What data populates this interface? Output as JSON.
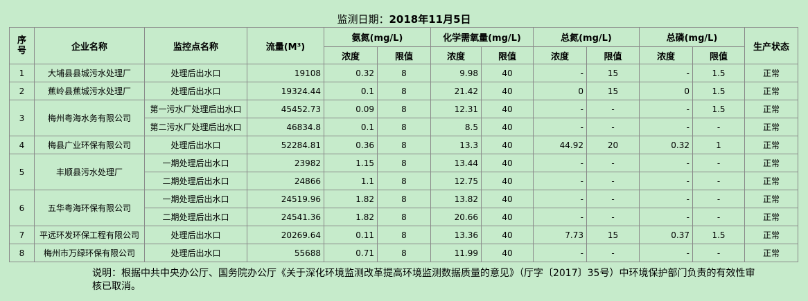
{
  "header": {
    "date_label": "监测日期：",
    "date_value": "2018年11月5日"
  },
  "columns": {
    "seq": "序号",
    "company": "企业名称",
    "point": "监控点名称",
    "flow": "流量(M³)",
    "ammonia": "氨氮(mg/L)",
    "cod": "化学需氧量(mg/L)",
    "tn": "总氮(mg/L)",
    "tp": "总磷(mg/L)",
    "status": "生产状态",
    "conc": "浓度",
    "limit": "限值"
  },
  "rows": [
    {
      "seq": "1",
      "company": "大埔县县城污水处理厂",
      "point": "处理后出水口",
      "flow": "19108",
      "nh3": "0.32",
      "nh3_lim": "8",
      "cod": "9.98",
      "cod_lim": "40",
      "tn": "-",
      "tn_lim": "15",
      "tp": "-",
      "tp_lim": "1.5",
      "status": "正常"
    },
    {
      "seq": "2",
      "company": "蕉岭县蕉城污水处理厂",
      "point": "处理后出水口",
      "flow": "19324.44",
      "nh3": "0.1",
      "nh3_lim": "8",
      "cod": "21.42",
      "cod_lim": "40",
      "tn": "0",
      "tn_lim": "15",
      "tp": "0",
      "tp_lim": "1.5",
      "status": "正常"
    },
    {
      "seq": "3",
      "company": "梅州粤海水务有限公司",
      "point": "第一污水厂处理后出水口",
      "flow": "45452.73",
      "nh3": "0.09",
      "nh3_lim": "8",
      "cod": "12.31",
      "cod_lim": "40",
      "tn": "-",
      "tn_lim": "-",
      "tp": "-",
      "tp_lim": "1.5",
      "status": "正常"
    },
    {
      "point": "第二污水厂处理后出水口",
      "flow": "46834.8",
      "nh3": "0.1",
      "nh3_lim": "8",
      "cod": "8.5",
      "cod_lim": "40",
      "tn": "-",
      "tn_lim": "-",
      "tp": "-",
      "tp_lim": "-",
      "status": "正常"
    },
    {
      "seq": "4",
      "company": "梅县广业环保有限公司",
      "point": "处理后出水口",
      "flow": "52284.81",
      "nh3": "0.36",
      "nh3_lim": "8",
      "cod": "13.3",
      "cod_lim": "40",
      "tn": "44.92",
      "tn_lim": "20",
      "tp": "0.32",
      "tp_lim": "1",
      "status": "正常"
    },
    {
      "seq": "5",
      "company": "丰顺县污水处理厂",
      "point": "一期处理后出水口",
      "flow": "23982",
      "nh3": "1.15",
      "nh3_lim": "8",
      "cod": "13.44",
      "cod_lim": "40",
      "tn": "-",
      "tn_lim": "-",
      "tp": "-",
      "tp_lim": "-",
      "status": "正常"
    },
    {
      "point": "二期处理后出水口",
      "flow": "24866",
      "nh3": "1.1",
      "nh3_lim": "8",
      "cod": "12.75",
      "cod_lim": "40",
      "tn": "-",
      "tn_lim": "-",
      "tp": "-",
      "tp_lim": "-",
      "status": "正常"
    },
    {
      "seq": "6",
      "company": "五华粤海环保有限公司",
      "point": "一期处理后出水口",
      "flow": "24519.96",
      "nh3": "1.82",
      "nh3_lim": "8",
      "cod": "13.82",
      "cod_lim": "40",
      "tn": "-",
      "tn_lim": "-",
      "tp": "-",
      "tp_lim": "-",
      "status": "正常"
    },
    {
      "point": "二期处理后出水口",
      "flow": "24541.36",
      "nh3": "1.82",
      "nh3_lim": "8",
      "cod": "20.66",
      "cod_lim": "40",
      "tn": "-",
      "tn_lim": "-",
      "tp": "-",
      "tp_lim": "-",
      "status": "正常"
    },
    {
      "seq": "7",
      "company": "平远环发环保工程有限公司",
      "point": "处理后出水口",
      "flow": "20269.64",
      "nh3": "0.11",
      "nh3_lim": "8",
      "cod": "13.36",
      "cod_lim": "40",
      "tn": "7.73",
      "tn_lim": "15",
      "tp": "0.37",
      "tp_lim": "1.5",
      "status": "正常"
    },
    {
      "seq": "8",
      "company": "梅州市万绿环保有限公司",
      "point": "处理后出水口",
      "flow": "55688",
      "nh3": "0.71",
      "nh3_lim": "8",
      "cod": "11.99",
      "cod_lim": "40",
      "tn": "-",
      "tn_lim": "-",
      "tp": "-",
      "tp_lim": "-",
      "status": "正常"
    }
  ],
  "note": "说明：根据中共中央办公厅、国务院办公厅《关于深化环境监测改革提高环境监测数据质量的意见》（厅字〔2017〕35号）中环境保护部门负责的有效性审核已取消。"
}
